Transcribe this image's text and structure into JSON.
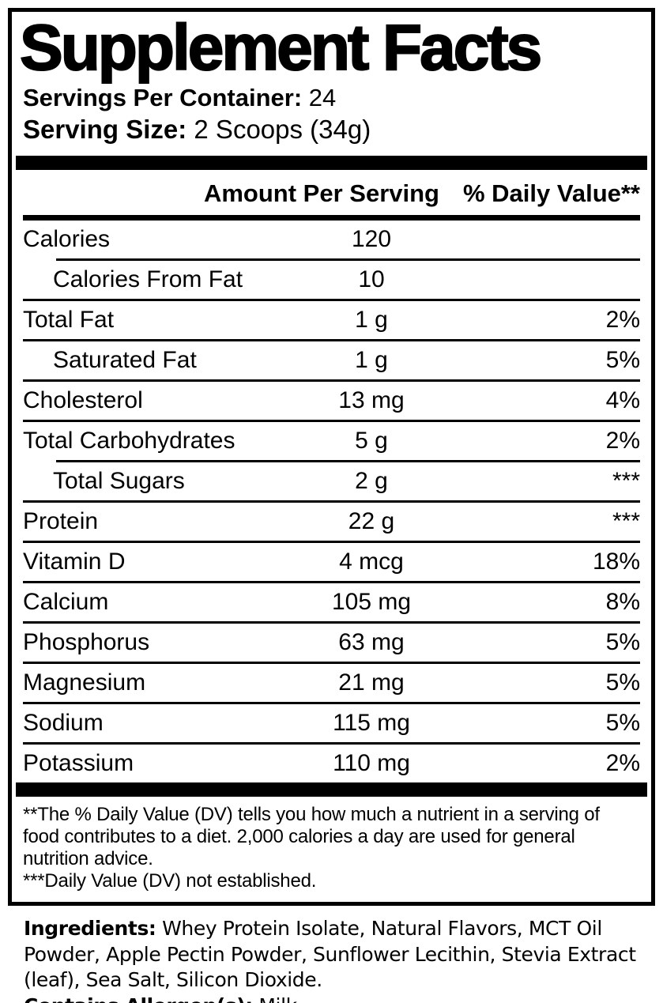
{
  "panel": {
    "title": "Supplement Facts",
    "servings_per_container_label": "Servings Per Container:",
    "servings_per_container_value": "24",
    "serving_size_label": "Serving Size:",
    "serving_size_value": "2 Scoops (34g)",
    "columns": {
      "amount": "Amount Per Serving",
      "dv": "% Daily Value**"
    },
    "nutrients": [
      {
        "name": "Calories",
        "amount": "120",
        "dv": "",
        "indent": false,
        "rule_above": "none"
      },
      {
        "name": "Calories From Fat",
        "amount": "10",
        "dv": "",
        "indent": true,
        "rule_above": "indent"
      },
      {
        "name": "Total Fat",
        "amount": "1 g",
        "dv": "2%",
        "indent": false,
        "rule_above": "full"
      },
      {
        "name": "Saturated Fat",
        "amount": "1 g",
        "dv": "5%",
        "indent": true,
        "rule_above": "full"
      },
      {
        "name": "Cholesterol",
        "amount": "13 mg",
        "dv": "4%",
        "indent": false,
        "rule_above": "full"
      },
      {
        "name": "Total Carbohydrates",
        "amount": "5 g",
        "dv": "2%",
        "indent": false,
        "rule_above": "full"
      },
      {
        "name": "Total Sugars",
        "amount": "2 g",
        "dv": "***",
        "indent": true,
        "rule_above": "indent"
      },
      {
        "name": "Protein",
        "amount": "22 g",
        "dv": "***",
        "indent": false,
        "rule_above": "full"
      },
      {
        "name": "Vitamin D",
        "amount": "4 mcg",
        "dv": "18%",
        "indent": false,
        "rule_above": "full"
      },
      {
        "name": "Calcium",
        "amount": "105 mg",
        "dv": "8%",
        "indent": false,
        "rule_above": "full"
      },
      {
        "name": "Phosphorus",
        "amount": "63 mg",
        "dv": "5%",
        "indent": false,
        "rule_above": "full"
      },
      {
        "name": "Magnesium",
        "amount": "21 mg",
        "dv": "5%",
        "indent": false,
        "rule_above": "full"
      },
      {
        "name": "Sodium",
        "amount": "115 mg",
        "dv": "5%",
        "indent": false,
        "rule_above": "full"
      },
      {
        "name": "Potassium",
        "amount": "110 mg",
        "dv": "2%",
        "indent": false,
        "rule_above": "full"
      }
    ],
    "footnotes": {
      "daily_value": "**The % Daily Value (DV) tells you how much a nutrient in a serving of food contributes to a diet. 2,000 calories a day are used for general nutrition advice.",
      "not_established": "***Daily Value (DV) not established."
    }
  },
  "ingredients": {
    "label": "Ingredients:",
    "text": " Whey Protein Isolate, Natural Flavors, MCT Oil Powder, Apple Pectin Powder, Sunflower Lecithin, Stevia Extract (leaf), Sea Salt, Silicon Dioxide."
  },
  "allergens": {
    "label": "Contains Allergen(s):",
    "text": " Milk"
  },
  "colors": {
    "text": "#000000",
    "background": "#ffffff"
  }
}
